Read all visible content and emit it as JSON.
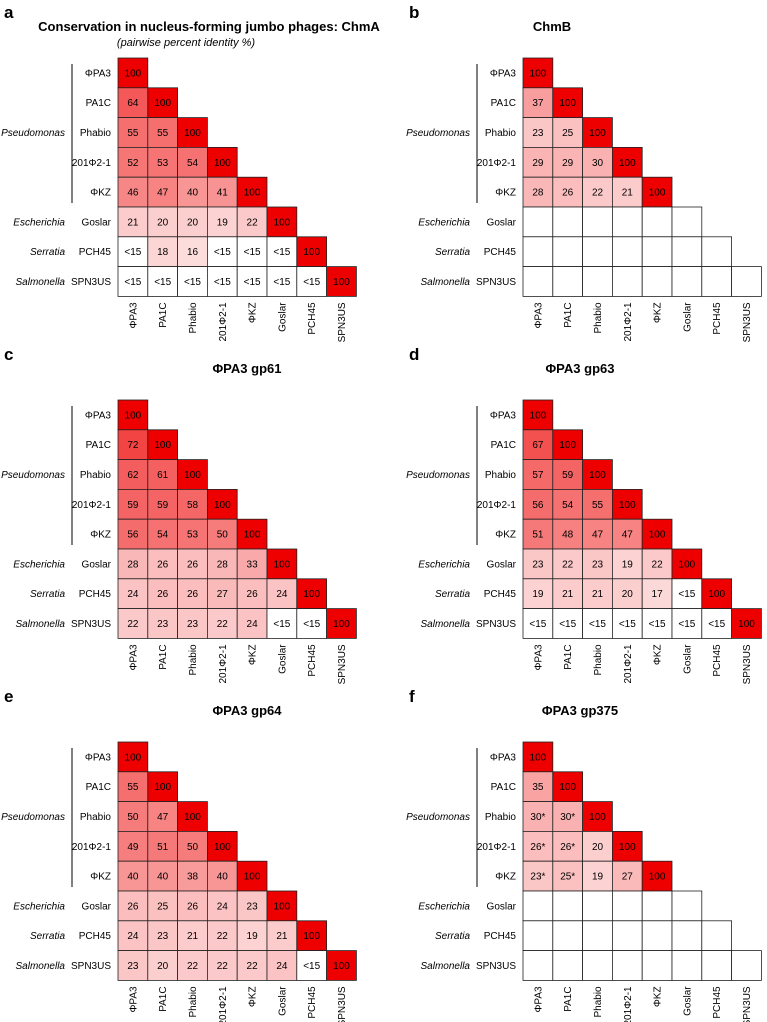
{
  "colors": {
    "high": "#ee0000",
    "low": "#ffffff",
    "grid": "#222222"
  },
  "organisms": [
    "ΦPA3",
    "PA1C",
    "Phabio",
    "201Φ2-1",
    "ΦKZ",
    "Goslar",
    "PCH45",
    "SPN3US"
  ],
  "genera": [
    {
      "name": "Pseudomonas",
      "rows": [
        0,
        4
      ]
    },
    {
      "name": "Escherichia",
      "rows": [
        5,
        5
      ]
    },
    {
      "name": "Serratia",
      "rows": [
        6,
        6
      ]
    },
    {
      "name": "Salmonella",
      "rows": [
        7,
        7
      ]
    }
  ],
  "chart_data": [
    {
      "panel": "a",
      "type": "heatmap",
      "title": "Conservation in nucleus-forming jumbo phages: ChmA",
      "subtitle": "(pairwise percent identity %)",
      "values": [
        [
          "100"
        ],
        [
          "64",
          "100"
        ],
        [
          "55",
          "55",
          "100"
        ],
        [
          "52",
          "53",
          "54",
          "100"
        ],
        [
          "46",
          "47",
          "40",
          "41",
          "100"
        ],
        [
          "21",
          "20",
          "20",
          "19",
          "22",
          "100"
        ],
        [
          "<15",
          "18",
          "16",
          "<15",
          "<15",
          "<15",
          "100"
        ],
        [
          "<15",
          "<15",
          "<15",
          "<15",
          "<15",
          "<15",
          "<15",
          "100"
        ]
      ]
    },
    {
      "panel": "b",
      "type": "heatmap",
      "title": "ChmB",
      "subtitle": "",
      "values": [
        [
          "100"
        ],
        [
          "37",
          "100"
        ],
        [
          "23",
          "25",
          "100"
        ],
        [
          "29",
          "29",
          "30",
          "100"
        ],
        [
          "28",
          "26",
          "22",
          "21",
          "100"
        ],
        [
          "",
          "",
          "",
          "",
          "",
          ""
        ],
        [
          "",
          "",
          "",
          "",
          "",
          "",
          ""
        ],
        [
          "",
          "",
          "",
          "",
          "",
          "",
          "",
          ""
        ]
      ]
    },
    {
      "panel": "c",
      "type": "heatmap",
      "title": "ΦPA3 gp61",
      "subtitle": "",
      "values": [
        [
          "100"
        ],
        [
          "72",
          "100"
        ],
        [
          "62",
          "61",
          "100"
        ],
        [
          "59",
          "59",
          "58",
          "100"
        ],
        [
          "56",
          "54",
          "53",
          "50",
          "100"
        ],
        [
          "28",
          "26",
          "26",
          "28",
          "33",
          "100"
        ],
        [
          "24",
          "26",
          "26",
          "27",
          "26",
          "24",
          "100"
        ],
        [
          "22",
          "23",
          "23",
          "22",
          "24",
          "<15",
          "<15",
          "100"
        ]
      ]
    },
    {
      "panel": "d",
      "type": "heatmap",
      "title": "ΦPA3 gp63",
      "subtitle": "",
      "values": [
        [
          "100"
        ],
        [
          "67",
          "100"
        ],
        [
          "57",
          "59",
          "100"
        ],
        [
          "56",
          "54",
          "55",
          "100"
        ],
        [
          "51",
          "48",
          "47",
          "47",
          "100"
        ],
        [
          "23",
          "22",
          "23",
          "19",
          "22",
          "100"
        ],
        [
          "19",
          "21",
          "21",
          "20",
          "17",
          "<15",
          "100"
        ],
        [
          "<15",
          "<15",
          "<15",
          "<15",
          "<15",
          "<15",
          "<15",
          "100"
        ]
      ]
    },
    {
      "panel": "e",
      "type": "heatmap",
      "title": "ΦPA3 gp64",
      "subtitle": "",
      "values": [
        [
          "100"
        ],
        [
          "55",
          "100"
        ],
        [
          "50",
          "47",
          "100"
        ],
        [
          "49",
          "51",
          "50",
          "100"
        ],
        [
          "40",
          "40",
          "38",
          "40",
          "100"
        ],
        [
          "26",
          "25",
          "26",
          "24",
          "23",
          "100"
        ],
        [
          "24",
          "23",
          "21",
          "22",
          "19",
          "21",
          "100"
        ],
        [
          "23",
          "20",
          "22",
          "22",
          "22",
          "24",
          "<15",
          "100"
        ]
      ]
    },
    {
      "panel": "f",
      "type": "heatmap",
      "title": "ΦPA3 gp375",
      "subtitle": "",
      "values": [
        [
          "100"
        ],
        [
          "35",
          "100"
        ],
        [
          "30*",
          "30*",
          "100"
        ],
        [
          "26*",
          "26*",
          "20",
          "100"
        ],
        [
          "23*",
          "25*",
          "19",
          "27",
          "100"
        ],
        [
          "",
          "",
          "",
          "",
          "",
          ""
        ],
        [
          "",
          "",
          "",
          "",
          "",
          "",
          ""
        ],
        [
          "",
          "",
          "",
          "",
          "",
          "",
          "",
          ""
        ]
      ]
    }
  ]
}
